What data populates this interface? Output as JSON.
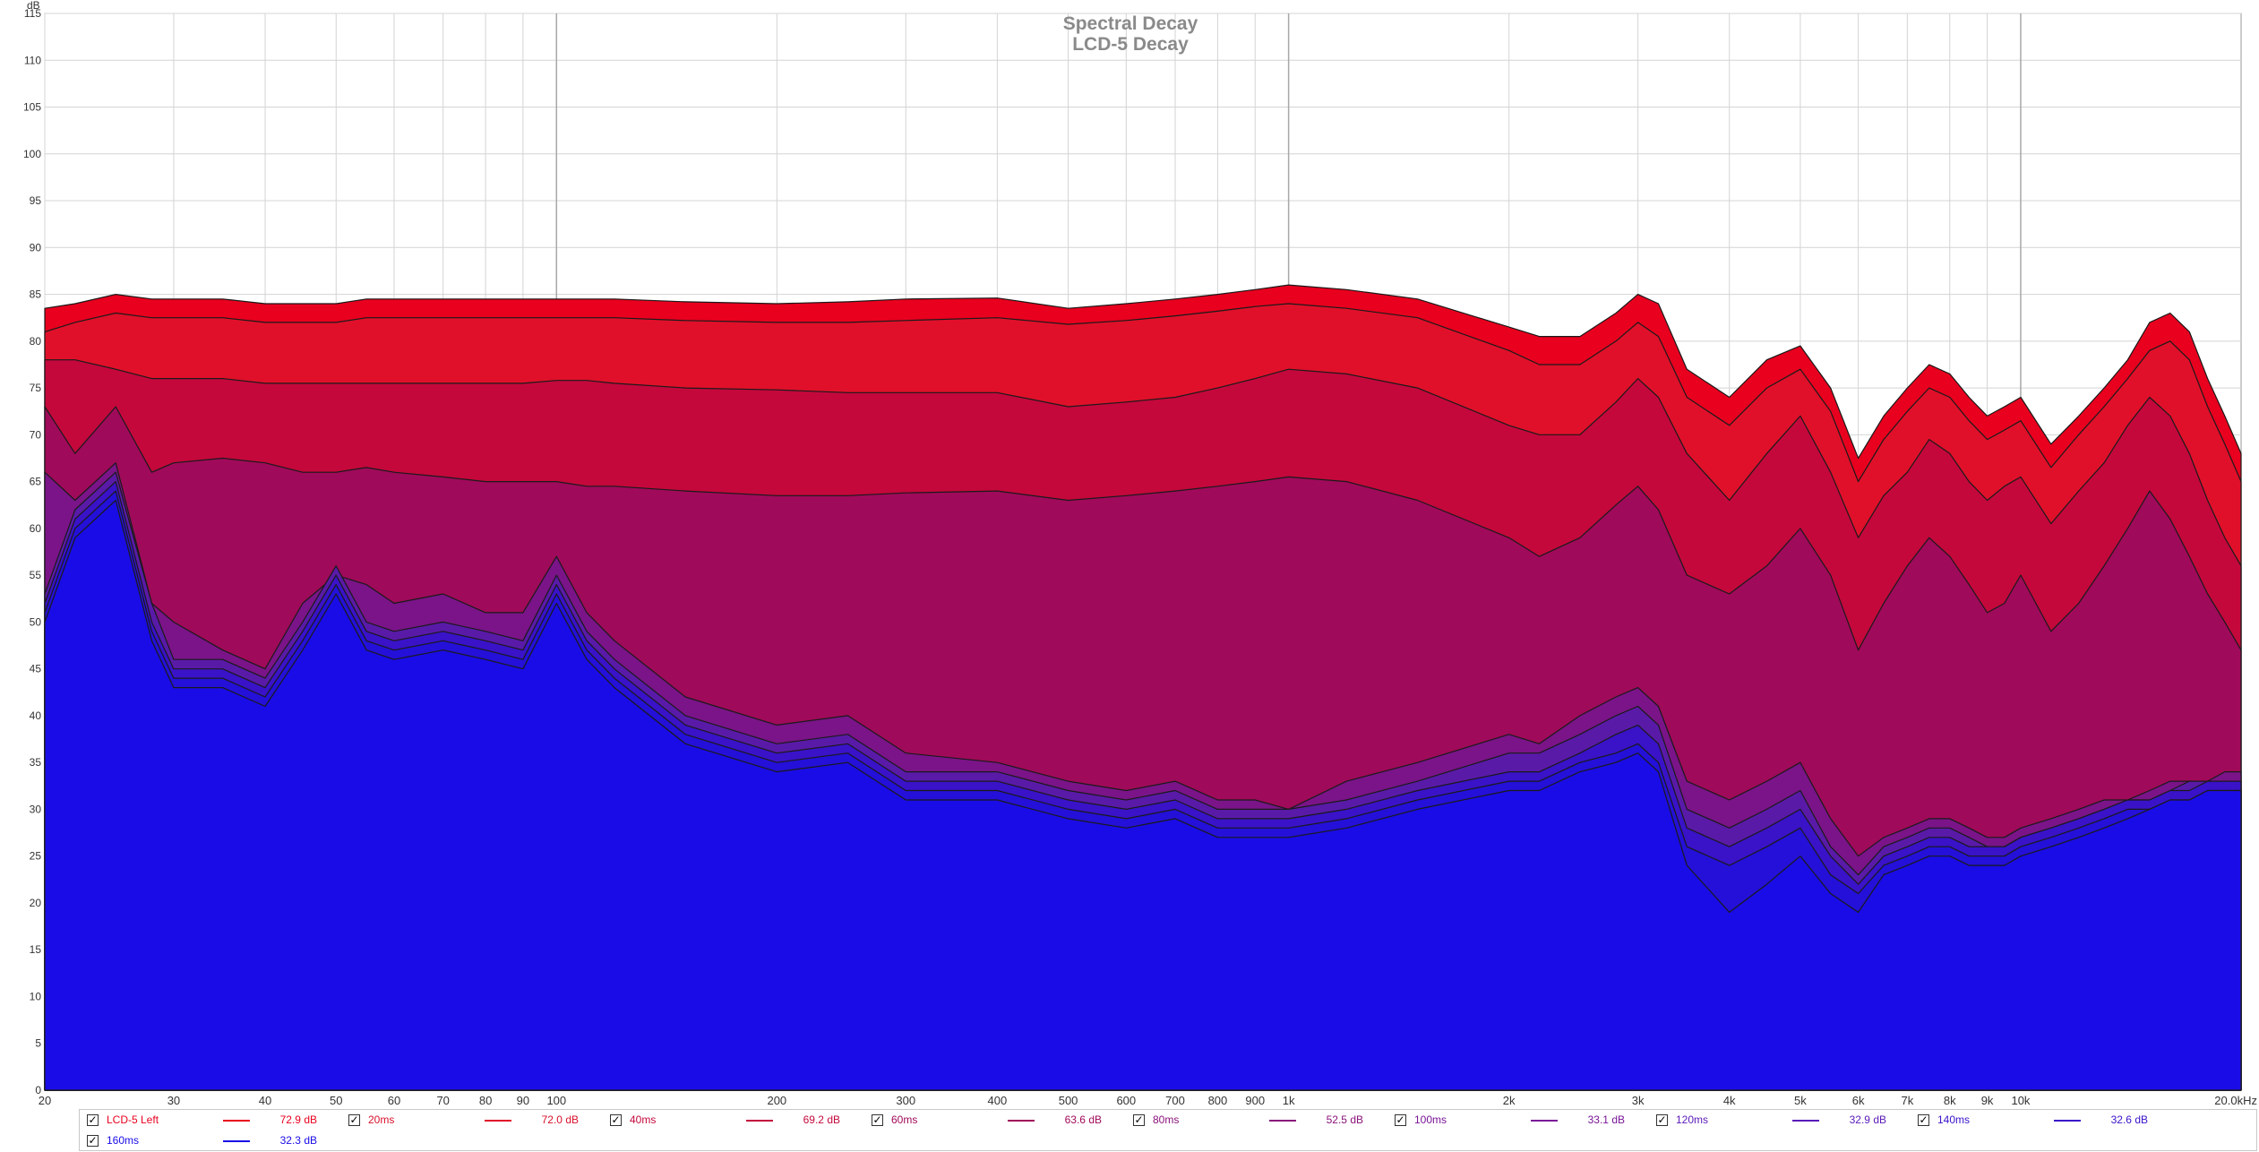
{
  "chart_data": {
    "type": "area",
    "title": "Spectral Decay",
    "subtitle": "LCD-5 Decay",
    "ylabel": "dB",
    "xunit_label": "20.0kHz",
    "x_scale": "log",
    "xlim": [
      20,
      20000
    ],
    "ylim": [
      0,
      115
    ],
    "grid": true,
    "legend_position": "bottom",
    "y_ticks": [
      "0",
      "5",
      "10",
      "15",
      "20",
      "25",
      "30",
      "35",
      "40",
      "45",
      "50",
      "55",
      "60",
      "65",
      "70",
      "75",
      "80",
      "85",
      "90",
      "95",
      "100",
      "105",
      "110",
      "115"
    ],
    "x_ticks": [
      {
        "v": 20,
        "label": "20"
      },
      {
        "v": 30,
        "label": "30"
      },
      {
        "v": 40,
        "label": "40"
      },
      {
        "v": 50,
        "label": "50"
      },
      {
        "v": 60,
        "label": "60"
      },
      {
        "v": 70,
        "label": "70"
      },
      {
        "v": 80,
        "label": "80"
      },
      {
        "v": 90,
        "label": "90"
      },
      {
        "v": 100,
        "label": "100"
      },
      {
        "v": 200,
        "label": "200"
      },
      {
        "v": 300,
        "label": "300"
      },
      {
        "v": 400,
        "label": "400"
      },
      {
        "v": 500,
        "label": "500"
      },
      {
        "v": 600,
        "label": "600"
      },
      {
        "v": 700,
        "label": "700"
      },
      {
        "v": 800,
        "label": "800"
      },
      {
        "v": 900,
        "label": "900"
      },
      {
        "v": 1000,
        "label": "1k"
      },
      {
        "v": 2000,
        "label": "2k"
      },
      {
        "v": 3000,
        "label": "3k"
      },
      {
        "v": 4000,
        "label": "4k"
      },
      {
        "v": 5000,
        "label": "5k"
      },
      {
        "v": 6000,
        "label": "6k"
      },
      {
        "v": 7000,
        "label": "7k"
      },
      {
        "v": 8000,
        "label": "8k"
      },
      {
        "v": 9000,
        "label": "9k"
      },
      {
        "v": 10000,
        "label": "10k"
      }
    ],
    "x": [
      20,
      22,
      25,
      28,
      30,
      35,
      40,
      45,
      50,
      55,
      60,
      70,
      80,
      90,
      100,
      110,
      120,
      150,
      200,
      250,
      300,
      400,
      500,
      600,
      700,
      800,
      900,
      1000,
      1200,
      1500,
      2000,
      2200,
      2500,
      2800,
      3000,
      3200,
      3500,
      4000,
      4500,
      5000,
      5500,
      6000,
      6500,
      7000,
      7500,
      8000,
      8500,
      9000,
      9500,
      10000,
      11000,
      12000,
      13000,
      14000,
      15000,
      16000,
      17000,
      18000,
      19000,
      20000
    ],
    "series": [
      {
        "name": "LCD-5 Left",
        "legend_value": "72.9 dB",
        "color": "#e8001e",
        "values": [
          83.5,
          84,
          85,
          84.5,
          84.5,
          84.5,
          84,
          84,
          84,
          84.5,
          84.5,
          84.5,
          84.5,
          84.5,
          84.5,
          84.5,
          84.5,
          84.2,
          84.0,
          84.2,
          84.5,
          84.6,
          83.5,
          84.0,
          84.5,
          85,
          85.5,
          86,
          85.5,
          84.5,
          81.5,
          80.5,
          80.5,
          83,
          85,
          84,
          77,
          74,
          78,
          79.5,
          75,
          67.5,
          72,
          75,
          77.5,
          76.5,
          74,
          72,
          73,
          74,
          69,
          72,
          75,
          78,
          82,
          83,
          81,
          76,
          72,
          68
        ]
      },
      {
        "name": "20ms",
        "legend_value": "72.0 dB",
        "color": "#e0102a",
        "values": [
          81,
          82,
          83,
          82.5,
          82.5,
          82.5,
          82,
          82,
          82,
          82.5,
          82.5,
          82.5,
          82.5,
          82.5,
          82.5,
          82.5,
          82.5,
          82.2,
          82.0,
          82.0,
          82.2,
          82.5,
          81.8,
          82.2,
          82.7,
          83.2,
          83.7,
          84.0,
          83.5,
          82.5,
          79.0,
          77.5,
          77.5,
          80.0,
          82.0,
          80.5,
          74.0,
          71.0,
          75.0,
          77.0,
          72.5,
          65.0,
          69.5,
          72.5,
          75.0,
          74.0,
          71.5,
          69.5,
          70.5,
          71.5,
          66.5,
          70.0,
          73.0,
          76.0,
          79.0,
          80.0,
          78.0,
          73.0,
          69.0,
          65.0
        ]
      },
      {
        "name": "40ms",
        "legend_value": "69.2 dB",
        "color": "#c4083c",
        "values": [
          78,
          78,
          77,
          76,
          76,
          76,
          75.5,
          75.5,
          75.5,
          75.5,
          75.5,
          75.5,
          75.5,
          75.5,
          75.8,
          75.8,
          75.5,
          75.0,
          74.8,
          74.5,
          74.5,
          74.5,
          73.0,
          73.5,
          74.0,
          75.0,
          76.0,
          77.0,
          76.5,
          75.0,
          71.0,
          70.0,
          70.0,
          73.5,
          76.0,
          74.0,
          68.0,
          63.0,
          68.0,
          72.0,
          66.0,
          59.0,
          63.5,
          66.0,
          69.5,
          68.0,
          65.0,
          63.0,
          64.5,
          65.5,
          60.5,
          64.0,
          67.0,
          71.0,
          74.0,
          72.0,
          68.0,
          63.0,
          59.0,
          56.0
        ]
      },
      {
        "name": "60ms",
        "legend_value": "63.6 dB",
        "color": "#a00a5a",
        "values": [
          73,
          68,
          73,
          66,
          67,
          67.5,
          67,
          66,
          66,
          66.5,
          66,
          65.5,
          65,
          65,
          65,
          64.5,
          64.5,
          64.0,
          63.5,
          63.5,
          63.8,
          64.0,
          63.0,
          63.5,
          64.0,
          64.5,
          65.0,
          65.5,
          65.0,
          63.0,
          59.0,
          57.0,
          59.0,
          62.5,
          64.5,
          62.0,
          55.0,
          53.0,
          56.0,
          60.0,
          55.0,
          47.0,
          52.0,
          56.0,
          59.0,
          57.0,
          54.0,
          51.0,
          52.0,
          55.0,
          49.0,
          52.0,
          56.0,
          60.0,
          64.0,
          61.0,
          57.0,
          53.0,
          50.0,
          47.0
        ]
      },
      {
        "name": "80ms",
        "legend_value": "52.5 dB",
        "color": "#7a1488",
        "values": [
          66,
          63,
          67,
          52,
          50,
          47,
          45,
          52,
          55,
          54,
          52,
          53,
          51,
          51,
          57,
          51,
          48,
          42,
          39,
          40,
          36,
          35,
          33,
          32,
          33,
          31,
          31,
          30,
          33,
          35,
          38,
          37,
          40,
          42,
          43,
          41,
          33,
          31,
          33,
          35,
          29,
          25,
          27,
          28,
          29,
          29,
          28,
          27,
          27,
          28,
          29,
          30,
          31,
          31,
          32,
          33,
          33,
          33,
          34,
          34
        ]
      },
      {
        "name": "100ms",
        "legend_value": "33.1 dB",
        "color": "#5a1aa8",
        "values": [
          53,
          62,
          66,
          52,
          46,
          46,
          44,
          50,
          56,
          50,
          49,
          50,
          49,
          48,
          55,
          49,
          46,
          40,
          37,
          38,
          34,
          34,
          32,
          31,
          32,
          30,
          30,
          30,
          31,
          33,
          36,
          36,
          38,
          40,
          41,
          39,
          30,
          28,
          30,
          32,
          26,
          23,
          26,
          27,
          28,
          28,
          27,
          26,
          26,
          27,
          28,
          29,
          30,
          31,
          31,
          32,
          33,
          33,
          33,
          33
        ]
      },
      {
        "name": "120ms",
        "legend_value": "32.9 dB",
        "color": "#3a12c8",
        "values": [
          52,
          61,
          65,
          50,
          45,
          45,
          43,
          49,
          55,
          49,
          48,
          49,
          48,
          47,
          54,
          48,
          45,
          39,
          36,
          37,
          33,
          33,
          31,
          30,
          31,
          29,
          29,
          29,
          30,
          32,
          34,
          34,
          36,
          38,
          39,
          37,
          28,
          26,
          28,
          30,
          25,
          22,
          25,
          26,
          27,
          27,
          26,
          26,
          26,
          27,
          28,
          29,
          30,
          31,
          31,
          32,
          32,
          33,
          33,
          33
        ]
      },
      {
        "name": "140ms",
        "legend_value": "32.6 dB",
        "color": "#2410d8",
        "values": [
          51,
          60,
          64,
          49,
          44,
          44,
          42,
          48,
          54,
          48,
          47,
          48,
          47,
          46,
          53,
          47,
          44,
          38,
          35,
          36,
          32,
          32,
          30,
          29,
          30,
          28,
          28,
          28,
          29,
          31,
          33,
          33,
          35,
          36,
          37,
          35,
          26,
          24,
          26,
          28,
          23,
          21,
          24,
          25,
          26,
          26,
          25,
          25,
          25,
          26,
          27,
          28,
          29,
          30,
          30,
          31,
          31,
          32,
          32,
          32
        ]
      },
      {
        "name": "160ms",
        "legend_value": "32.3 dB",
        "color": "#1a0ce6",
        "values": [
          50,
          59,
          63,
          48,
          43,
          43,
          41,
          47,
          53,
          47,
          46,
          47,
          46,
          45,
          52,
          46,
          43,
          37,
          34,
          35,
          31,
          31,
          29,
          28,
          29,
          27,
          27,
          27,
          28,
          30,
          32,
          32,
          34,
          35,
          36,
          34,
          24,
          19,
          22,
          25,
          21,
          19,
          23,
          24,
          25,
          25,
          24,
          24,
          24,
          25,
          26,
          27,
          28,
          29,
          30,
          31,
          31,
          32,
          32,
          32
        ]
      }
    ]
  },
  "legend": {
    "rows": [
      [
        {
          "name": "LCD-5 Left",
          "value": "72.9 dB",
          "color": "#e8001e",
          "text_color": "#e8001e",
          "checked": "✓"
        },
        {
          "name": "20ms",
          "value": "72.0 dB",
          "color": "#e0102a",
          "text_color": "#d8102a",
          "checked": "✓"
        },
        {
          "name": "40ms",
          "value": "69.2 dB",
          "color": "#c4083c",
          "text_color": "#c4083c",
          "checked": "✓"
        },
        {
          "name": "60ms",
          "value": "63.6 dB",
          "color": "#a00a5a",
          "text_color": "#a00a5a",
          "checked": "✓"
        },
        {
          "name": "80ms",
          "value": "52.5 dB",
          "color": "#8a127a",
          "text_color": "#8a127a",
          "checked": "✓"
        },
        {
          "name": "100ms",
          "value": "33.1 dB",
          "color": "#7a1498",
          "text_color": "#7a1498",
          "checked": "✓"
        },
        {
          "name": "120ms",
          "value": "32.9 dB",
          "color": "#5a1ab8",
          "text_color": "#5a1ab8",
          "checked": "✓"
        },
        {
          "name": "140ms",
          "value": "32.6 dB",
          "color": "#3a12c8",
          "text_color": "#3a12c8",
          "checked": "✓"
        }
      ],
      [
        {
          "name": "160ms",
          "value": "32.3 dB",
          "color": "#1a0ce6",
          "text_color": "#1a0ce6",
          "checked": "✓"
        }
      ]
    ]
  }
}
